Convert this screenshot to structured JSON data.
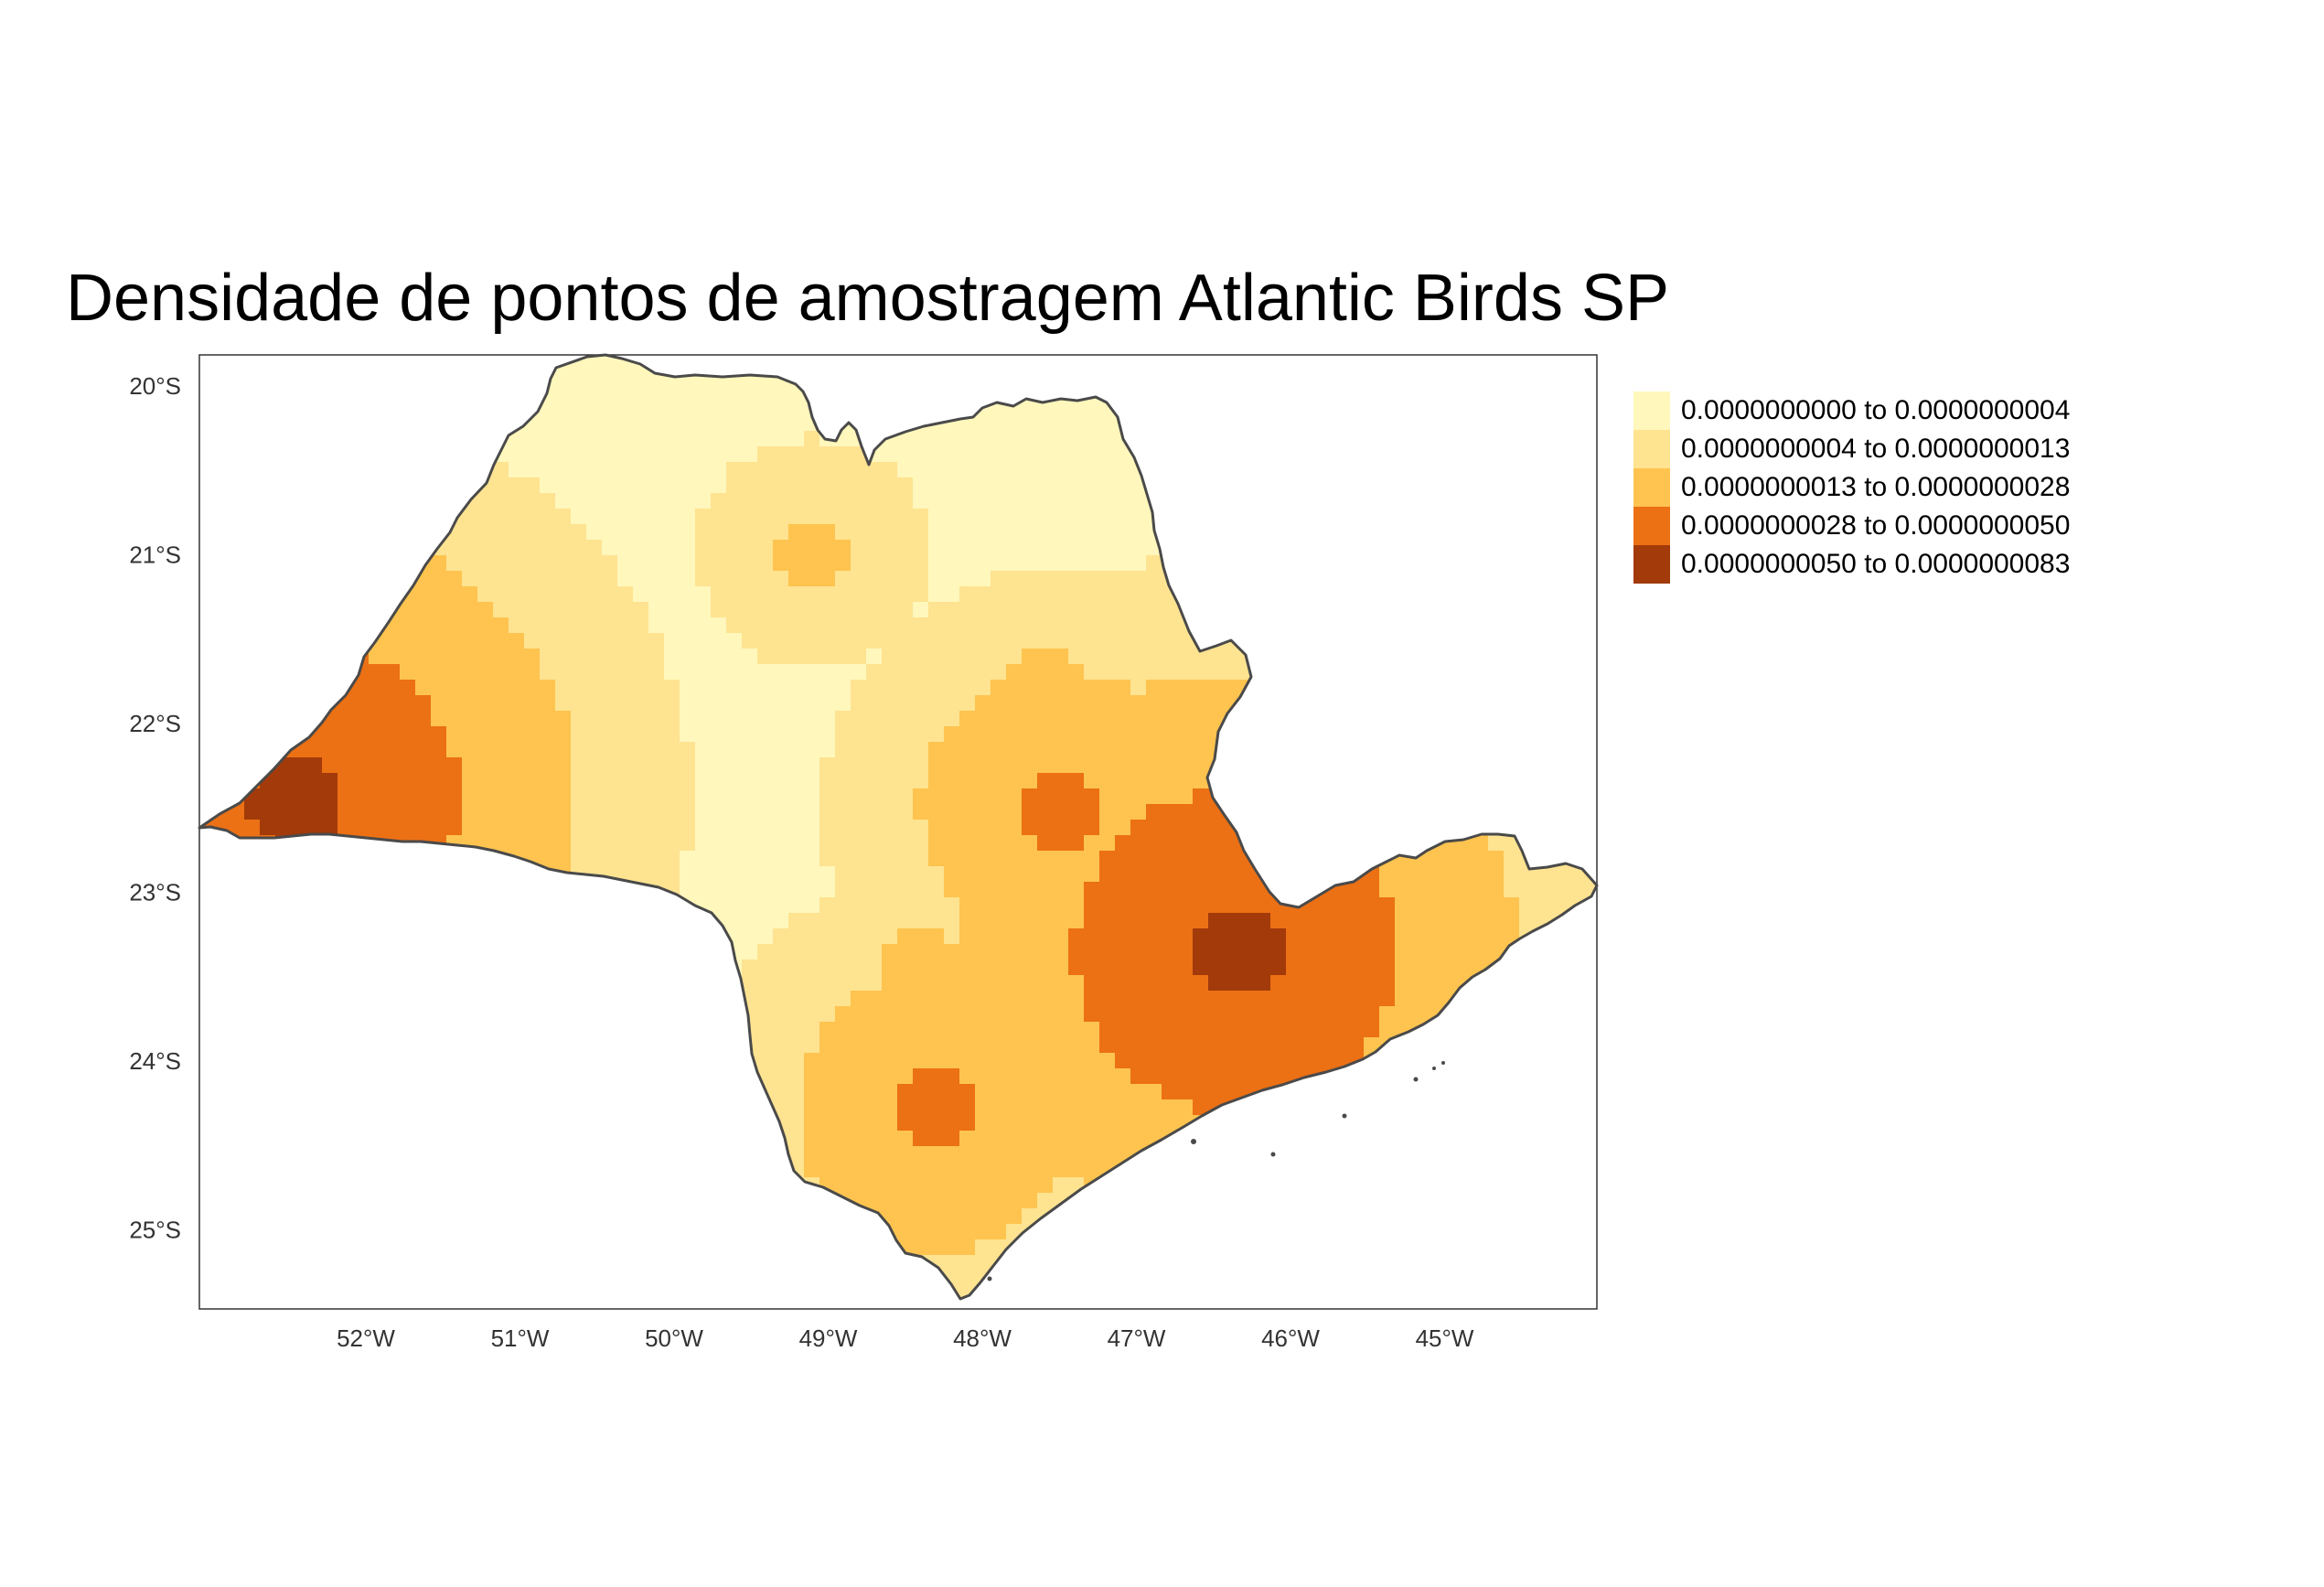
{
  "title": "Densidade de pontos de amostragem Atlantic Birds SP",
  "axes": {
    "x_ticks": [
      "52°W",
      "51°W",
      "50°W",
      "49°W",
      "48°W",
      "47°W",
      "46°W",
      "45°W"
    ],
    "y_ticks": [
      "20°S",
      "21°S",
      "22°S",
      "23°S",
      "24°S",
      "25°S"
    ],
    "lon_range": [
      -53.1,
      -44.1
    ],
    "lat_range": [
      -25.4,
      -19.75
    ]
  },
  "legend": [
    {
      "label": "0.0000000000 to 0.0000000004",
      "color": "#FFF7BC"
    },
    {
      "label": "0.0000000004 to 0.0000000013",
      "color": "#FEE391"
    },
    {
      "label": "0.0000000013 to 0.0000000028",
      "color": "#FEC44F"
    },
    {
      "label": "0.0000000028 to 0.0000000050",
      "color": "#EC7014"
    },
    {
      "label": "0.0000000050 to 0.0000000083",
      "color": "#A23A0A"
    }
  ],
  "colors": {
    "outline": "#4a4a4a",
    "frame": "#333333"
  },
  "chart_data": {
    "type": "heatmap",
    "kind": "choropleth raster map",
    "classes": [
      {
        "range": "0.0000000000 to 0.0000000004",
        "color": "#FFF7BC"
      },
      {
        "range": "0.0000000004 to 0.0000000013",
        "color": "#FEE391"
      },
      {
        "range": "0.0000000013 to 0.0000000028",
        "color": "#FEC44F"
      },
      {
        "range": "0.0000000028 to 0.0000000050",
        "color": "#EC7014"
      },
      {
        "range": "0.0000000050 to 0.0000000083",
        "color": "#A23A0A"
      }
    ],
    "hotspots": [
      {
        "lon": -52.45,
        "lat": -22.45,
        "class": 4
      },
      {
        "lon": -46.35,
        "lat": -23.35,
        "class": 4
      },
      {
        "lon": -48.3,
        "lat": -24.3,
        "class": 3
      },
      {
        "lon": -47.5,
        "lat": -22.5,
        "class": 3
      },
      {
        "lon": -47.6,
        "lat": -21.75,
        "class": 2
      },
      {
        "lon": -48.15,
        "lat": -22.3,
        "class": 2
      },
      {
        "lon": -48.4,
        "lat": -23.4,
        "class": 2
      },
      {
        "lon": -47.0,
        "lat": -23.85,
        "class": 2
      },
      {
        "lon": -45.5,
        "lat": -23.9,
        "class": 2
      },
      {
        "lon": -51.5,
        "lat": -21.4,
        "class": 2
      },
      {
        "lon": -49.1,
        "lat": -21.0,
        "class": 2
      },
      {
        "lon": -44.9,
        "lat": -23.6,
        "class": 2
      }
    ]
  }
}
